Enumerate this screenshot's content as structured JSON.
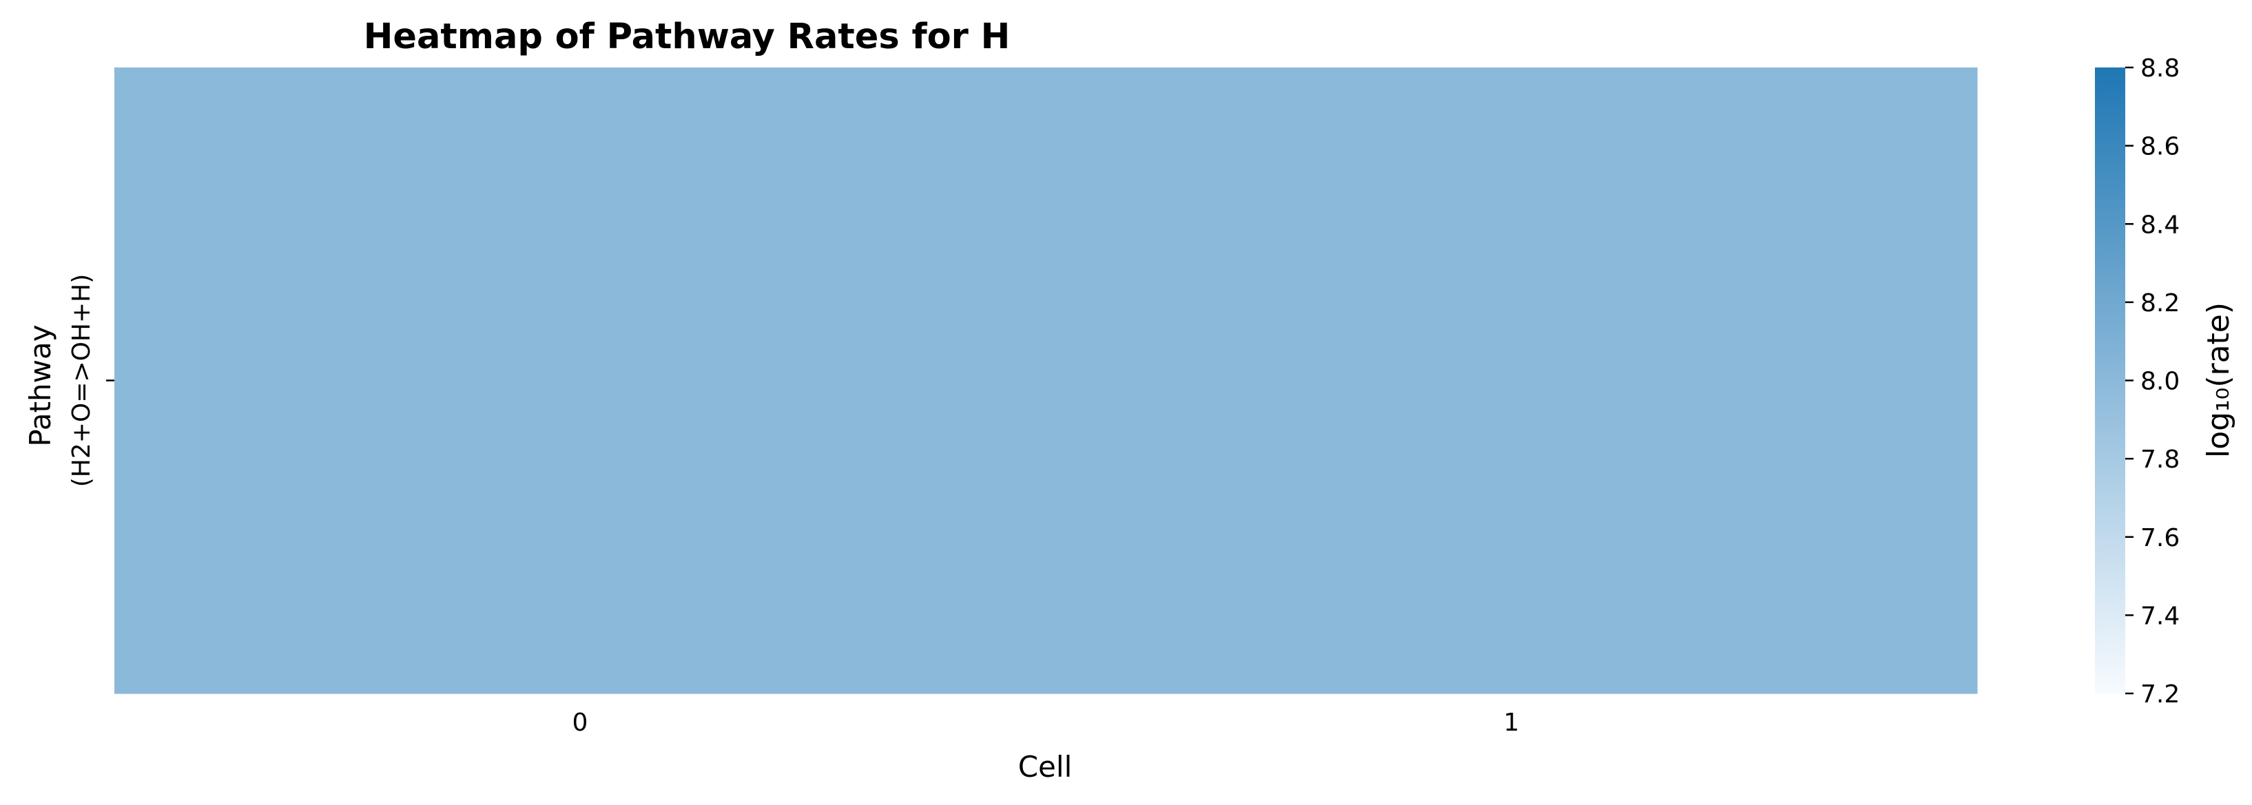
{
  "chart_data": {
    "type": "heatmap",
    "title": "Heatmap of Pathway Rates for H",
    "xlabel": "Cell",
    "ylabel": "Pathway",
    "x_categories": [
      "0",
      "1"
    ],
    "y_categories": [
      "(H2+O=>OH+H)"
    ],
    "values": [
      [
        8.0,
        8.0
      ]
    ],
    "colorbar": {
      "label": "log₁₀(rate)",
      "range": [
        7.2,
        8.8
      ],
      "ticks": [
        "7.2",
        "7.4",
        "7.6",
        "7.8",
        "8.0",
        "8.2",
        "8.4",
        "8.6",
        "8.8"
      ],
      "color_low": "#f7fbff",
      "color_high": "#1f77b4"
    },
    "grid": false,
    "legend": "colorbar-right"
  }
}
